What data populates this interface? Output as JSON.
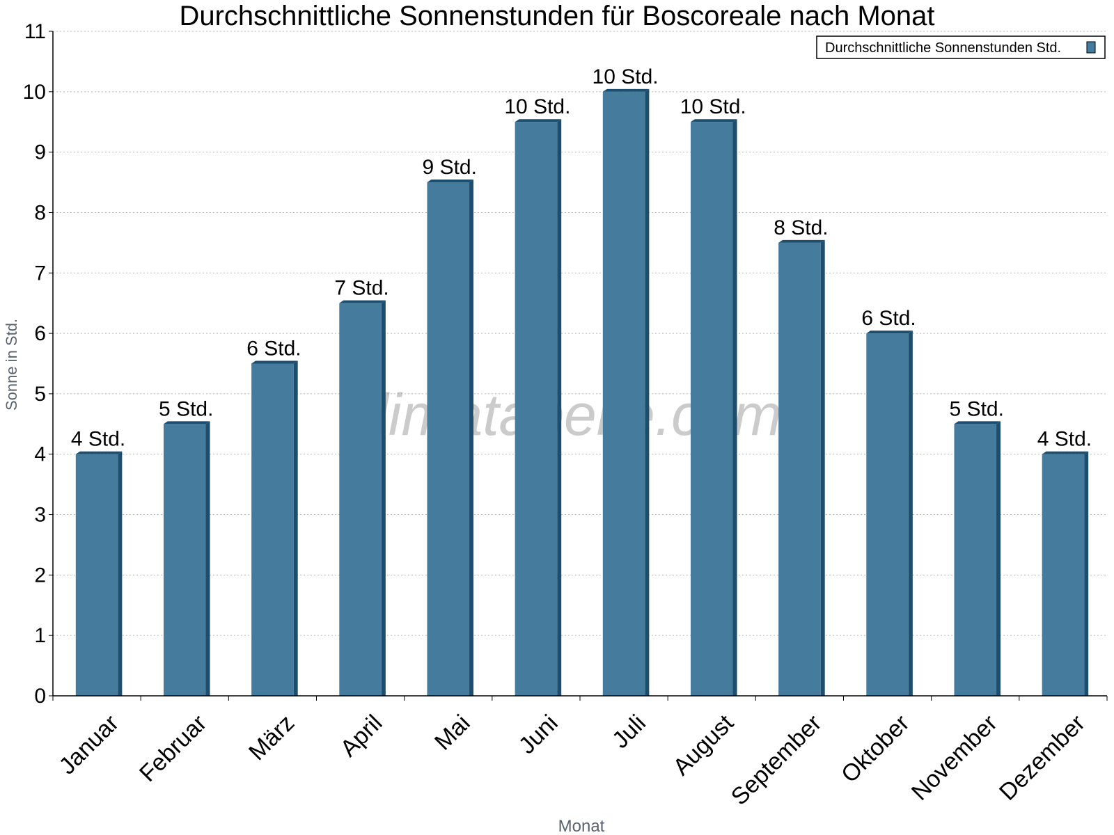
{
  "chart_data": {
    "type": "bar",
    "title": "Durchschnittliche Sonnenstunden für Boscoreale nach Monat",
    "xlabel": "Monat",
    "ylabel": "Sonne in Std.",
    "ylim": [
      0,
      11
    ],
    "yticks": [
      0,
      1,
      2,
      3,
      4,
      5,
      6,
      7,
      8,
      9,
      10,
      11
    ],
    "grid": true,
    "legend_position": "top-right",
    "categories": [
      "Januar",
      "Februar",
      "März",
      "April",
      "Mai",
      "Juni",
      "Juli",
      "August",
      "September",
      "Oktober",
      "November",
      "Dezember"
    ],
    "series": [
      {
        "name": "Durchschnittliche Sonnenstunden Std.",
        "values": [
          4.0,
          4.5,
          5.5,
          6.5,
          8.5,
          9.5,
          10.0,
          9.5,
          7.5,
          6.0,
          4.5,
          4.0
        ],
        "labels": [
          "4 Std.",
          "5 Std.",
          "6 Std.",
          "7 Std.",
          "9 Std.",
          "10 Std.",
          "10 Std.",
          "10 Std.",
          "8 Std.",
          "6 Std.",
          "5 Std.",
          "4 Std."
        ],
        "color": "#457b9d",
        "side_color": "#1d4e6e"
      }
    ]
  },
  "watermark": "klimatabelle.com"
}
